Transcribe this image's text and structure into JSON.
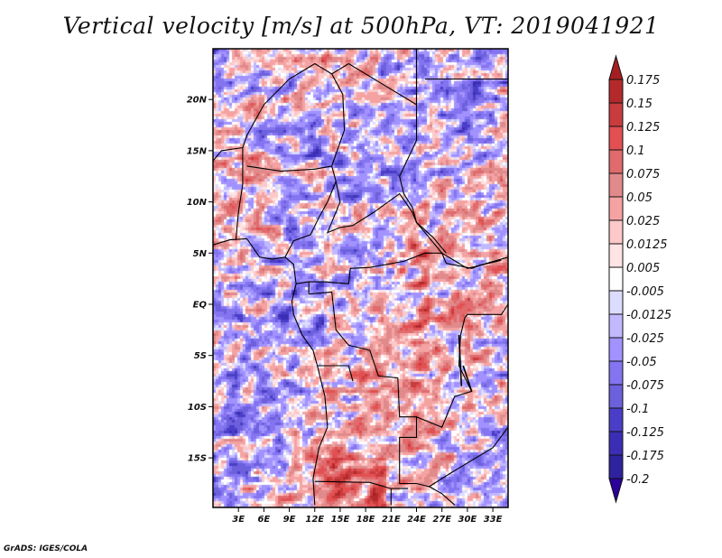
{
  "title": "Vertical velocity [m/s] at 500hPa, VT: 2019041921",
  "credit": "GrADS: IGES/COLA",
  "chart_data": {
    "type": "heatmap",
    "title": "Vertical velocity [m/s] at 500hPa, VT: 2019041921",
    "variable": "Vertical velocity",
    "units": "m/s",
    "level": "500hPa",
    "valid_time": "2019041921",
    "lon_range": [
      0,
      35
    ],
    "lat_range": [
      -20,
      25
    ],
    "lat_ticks": [
      {
        "value": 20,
        "label": "20N"
      },
      {
        "value": 15,
        "label": "15N"
      },
      {
        "value": 10,
        "label": "10N"
      },
      {
        "value": 5,
        "label": "5N"
      },
      {
        "value": 0,
        "label": "EQ"
      },
      {
        "value": -5,
        "label": "5S"
      },
      {
        "value": -10,
        "label": "10S"
      },
      {
        "value": -15,
        "label": "15S"
      }
    ],
    "lon_ticks": [
      {
        "value": 3,
        "label": "3E"
      },
      {
        "value": 6,
        "label": "6E"
      },
      {
        "value": 9,
        "label": "9E"
      },
      {
        "value": 12,
        "label": "12E"
      },
      {
        "value": 15,
        "label": "15E"
      },
      {
        "value": 18,
        "label": "18E"
      },
      {
        "value": 21,
        "label": "21E"
      },
      {
        "value": 24,
        "label": "24E"
      },
      {
        "value": 27,
        "label": "27E"
      },
      {
        "value": 30,
        "label": "30E"
      },
      {
        "value": 33,
        "label": "33E"
      }
    ],
    "colorbar": {
      "levels": [
        "0.175",
        "0.15",
        "0.125",
        "0.1",
        "0.075",
        "0.05",
        "0.025",
        "0.0125",
        "0.005",
        "-0.005",
        "-0.0125",
        "-0.025",
        "-0.05",
        "-0.075",
        "-0.1",
        "-0.125",
        "-0.175",
        "-0.2"
      ],
      "colors": [
        "#a51f22",
        "#b42a2c",
        "#c83c3e",
        "#e25052",
        "#e06a6c",
        "#e08a8c",
        "#f5a2a2",
        "#fcc8c8",
        "#ffe4e4",
        "#ffffff",
        "#dcdcff",
        "#c2b8ff",
        "#a192ff",
        "#8474f0",
        "#6c60dc",
        "#4a3ec8",
        "#3c2eb4",
        "#2e229e",
        "#2a009a"
      ]
    }
  }
}
